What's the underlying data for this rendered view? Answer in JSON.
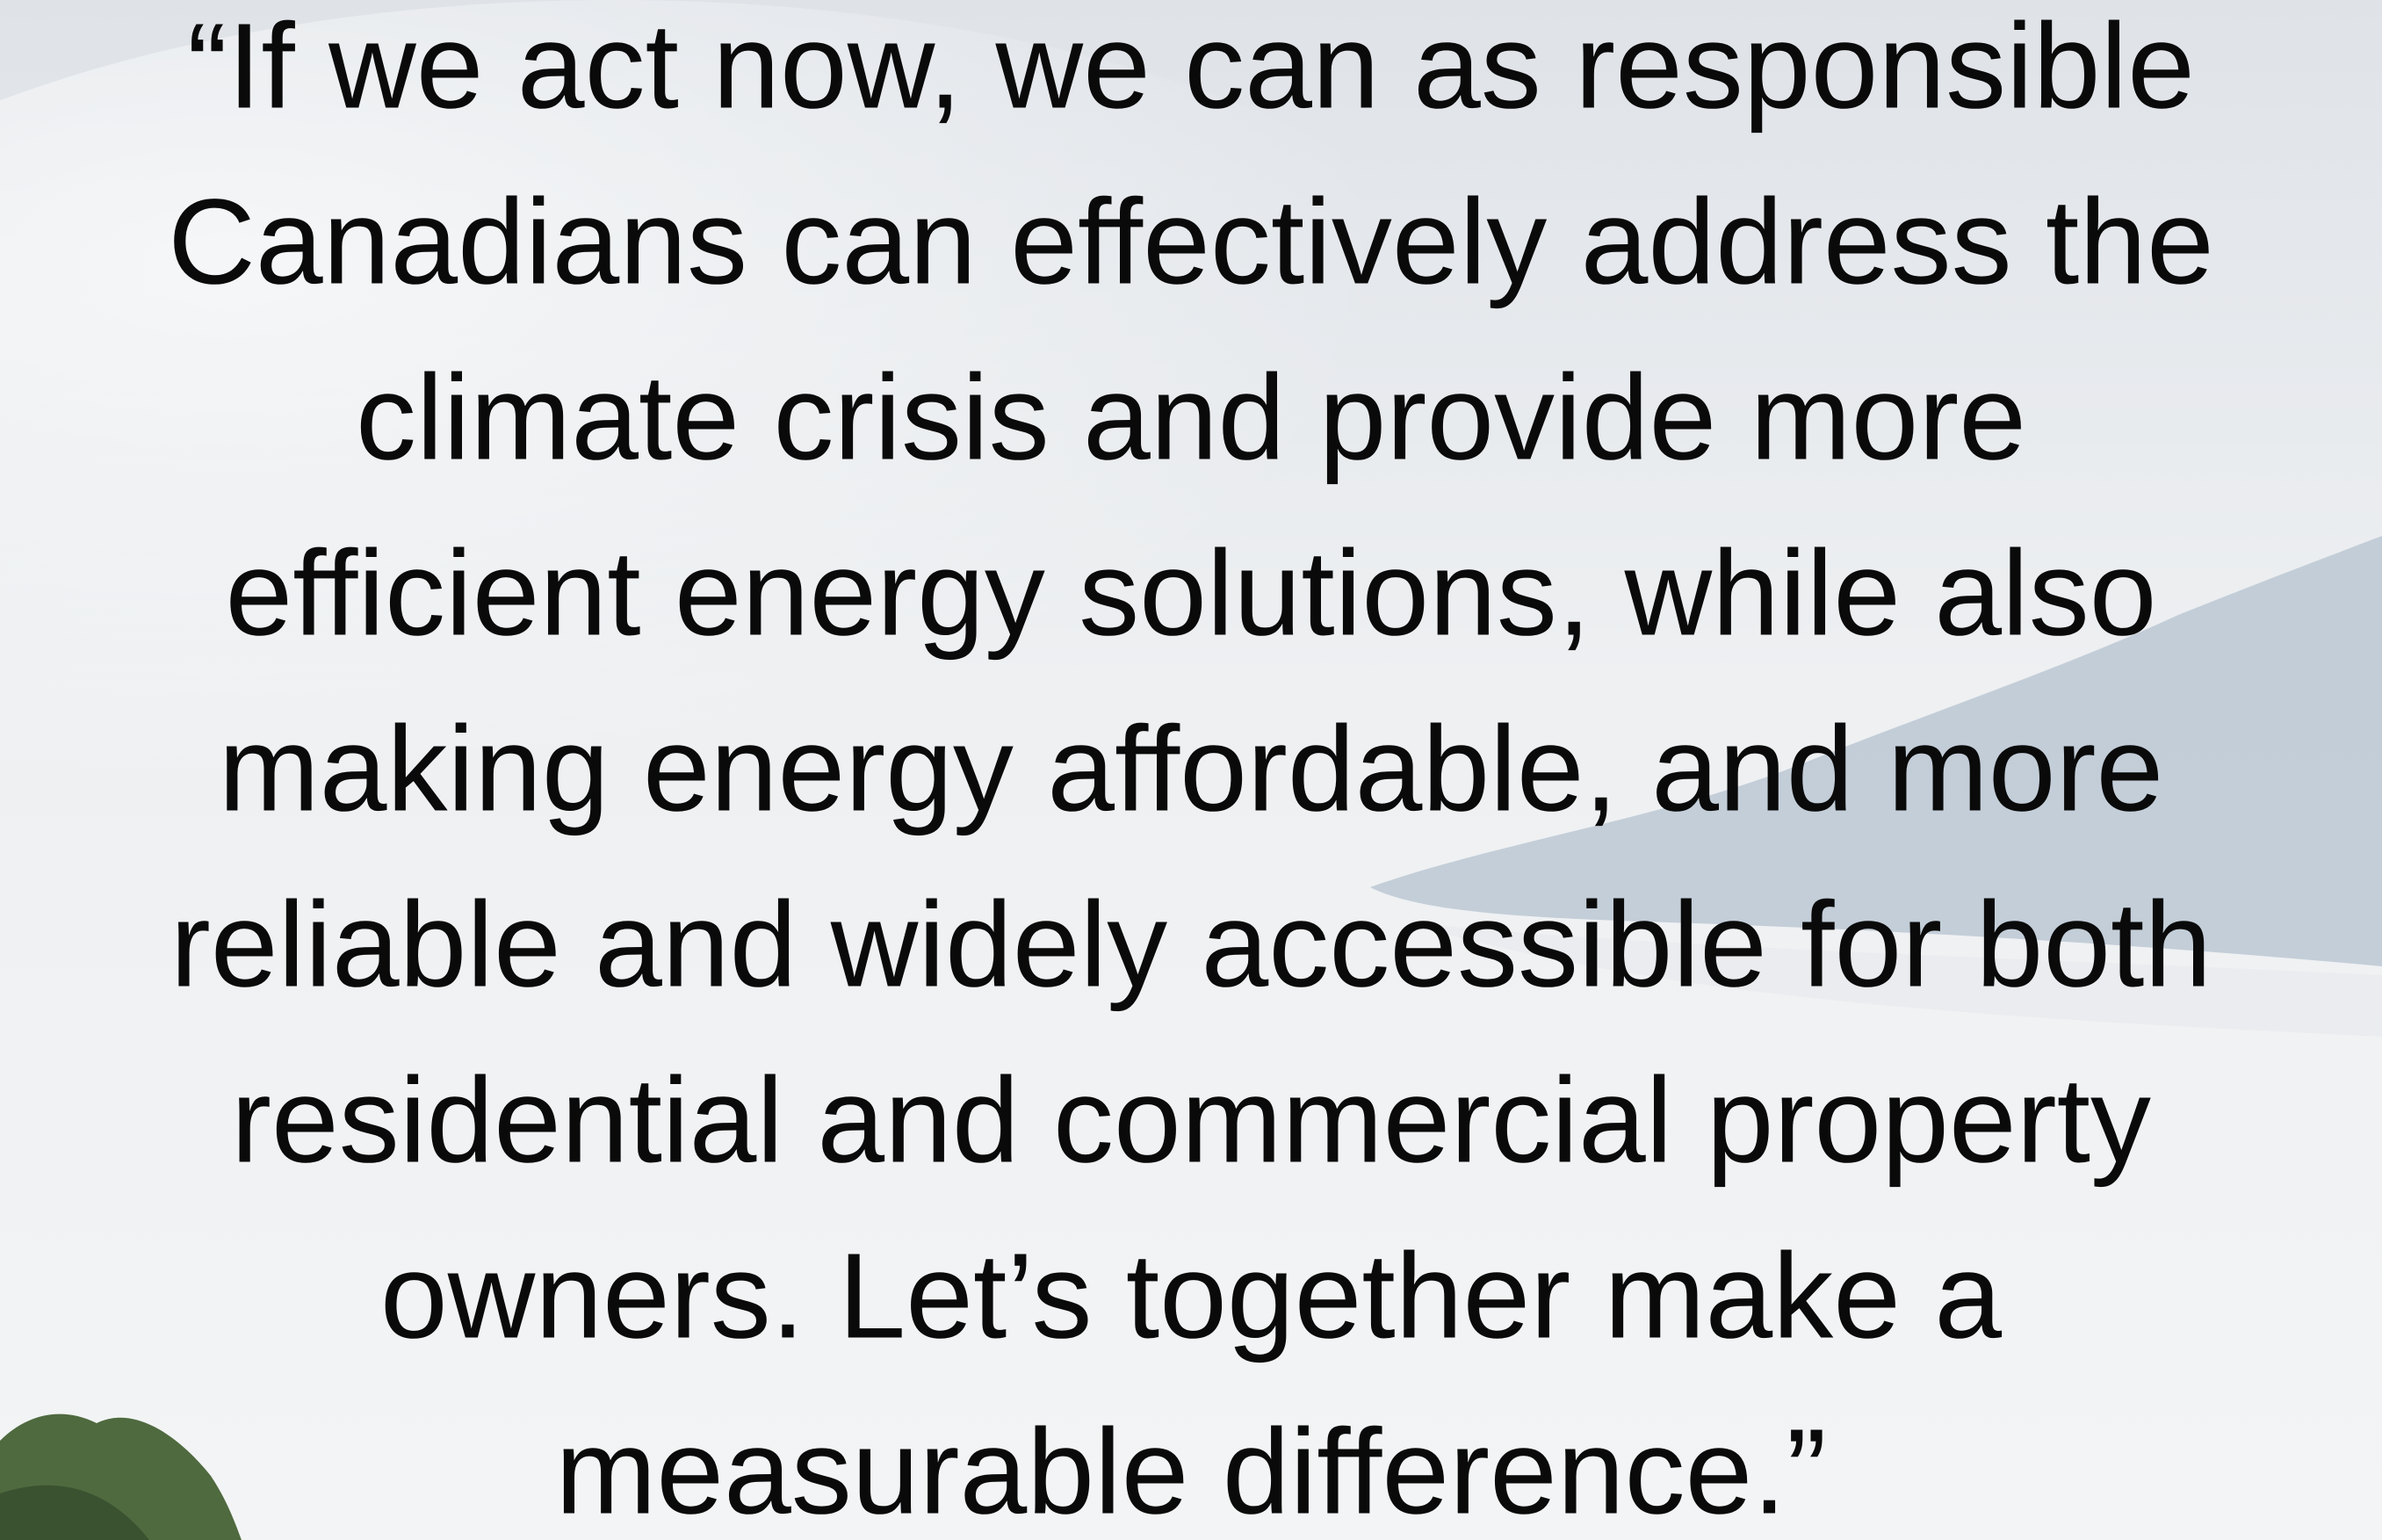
{
  "quote": {
    "lines": [
      "“If we act now, we can as responsible",
      "Canadians can effectively address the",
      "climate crisis and provide more",
      "efficient energy solutions, while also",
      "making energy affordable, and more",
      "reliable and widely accessible for both",
      "residential and commercial property",
      "owners. Let’s together make a",
      "measurable difference.”"
    ]
  }
}
